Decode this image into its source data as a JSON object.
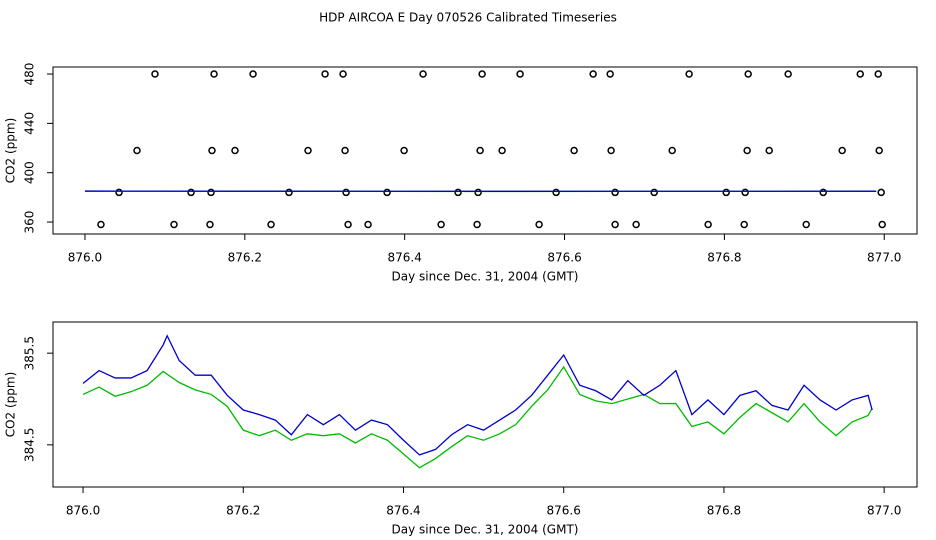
{
  "chart_data": [
    {
      "type": "scatter",
      "title": "HDP AIRCOA E  Day 070526  Calibrated Timeseries",
      "xlabel": "Day since Dec. 31, 2004 (GMT)",
      "ylabel": "CO2 (ppm)",
      "xlim": [
        875.96,
        877.041
      ],
      "ylim": [
        350.3,
        485.7
      ],
      "xticks": [
        {
          "value": 876,
          "label": "876.0"
        },
        876.2,
        876.4,
        876.6,
        876.8,
        {
          "value": 877,
          "label": "877.0"
        }
      ],
      "yticks": [
        360,
        400,
        440,
        480
      ],
      "series": [
        {
          "type": "scatter",
          "color": "#000000",
          "x": [
            876.0876,
            876.1615,
            876.2103,
            876.3004,
            876.3229,
            876.423,
            876.4969,
            876.5444,
            876.6358,
            876.6571,
            876.7559,
            876.8298,
            876.8798,
            876.97,
            876.9925,
            876.0651,
            876.1589,
            876.1877,
            876.2791,
            876.3254,
            876.3993,
            876.4944,
            876.5219,
            876.612,
            876.6583,
            876.7347,
            876.8285,
            876.8561,
            876.9474,
            876.9937,
            876.0426,
            876.1327,
            876.1577,
            876.2553,
            876.3267,
            876.378,
            876.4668,
            876.4919,
            876.5895,
            876.6633,
            876.7122,
            876.8023,
            876.826,
            876.9237,
            876.9962,
            876.02,
            876.1114,
            876.1564,
            876.2328,
            876.3292,
            876.3542,
            876.4456,
            876.4906,
            876.5682,
            876.6633,
            876.6896,
            876.7797,
            876.8248,
            876.9024,
            876.9975
          ],
          "values": [
            480,
            480,
            480,
            480,
            480,
            480,
            480,
            480,
            480,
            480,
            480,
            480,
            480,
            480,
            480,
            418,
            418,
            418,
            418,
            418,
            418,
            418,
            418,
            418,
            418,
            418,
            418,
            418,
            418,
            418,
            384,
            384,
            384,
            384,
            384,
            384,
            384,
            384,
            384,
            384,
            384,
            384,
            384,
            384,
            384,
            358,
            358,
            358,
            358,
            358,
            358,
            358,
            358,
            358,
            358,
            358,
            358,
            358,
            358,
            358
          ]
        },
        {
          "type": "line",
          "color": "#00bb00",
          "x": [
            876.0,
            876.5,
            876.99
          ],
          "values": [
            385.0,
            384.8,
            384.9
          ]
        },
        {
          "type": "line",
          "color": "#0000cc",
          "x": [
            876.0,
            876.5,
            876.99
          ],
          "values": [
            385.1,
            384.9,
            385.0
          ]
        }
      ]
    },
    {
      "type": "line",
      "xlabel": "Day since Dec. 31, 2004 (GMT)",
      "ylabel": "CO2 (ppm)",
      "xlim": [
        875.9625,
        877.041
      ],
      "ylim": [
        384.04,
        385.84
      ],
      "xticks": [
        {
          "value": 876,
          "label": "876.0"
        },
        876.2,
        876.4,
        876.6,
        876.8,
        {
          "value": 877,
          "label": "877.0"
        }
      ],
      "yticks": [
        384.5,
        385.5
      ],
      "series": [
        {
          "type": "line",
          "color": "#00bb00",
          "x": [
            876.0,
            876.02,
            876.04,
            876.06,
            876.08,
            876.1,
            876.12,
            876.14,
            876.16,
            876.18,
            876.2,
            876.22,
            876.24,
            876.26,
            876.28,
            876.3,
            876.32,
            876.34,
            876.36,
            876.38,
            876.4,
            876.42,
            876.44,
            876.46,
            876.48,
            876.5,
            876.52,
            876.54,
            876.56,
            876.58,
            876.6,
            876.62,
            876.64,
            876.66,
            876.68,
            876.7,
            876.72,
            876.74,
            876.76,
            876.78,
            876.8,
            876.82,
            876.84,
            876.86,
            876.88,
            876.9,
            876.92,
            876.94,
            876.96,
            876.98,
            876.985
          ],
          "values": [
            385.05,
            385.13,
            385.03,
            385.08,
            385.15,
            385.3,
            385.18,
            385.1,
            385.05,
            384.92,
            384.66,
            384.6,
            384.66,
            384.55,
            384.62,
            384.6,
            384.62,
            384.52,
            384.62,
            384.55,
            384.4,
            384.25,
            384.35,
            384.48,
            384.6,
            384.55,
            384.62,
            384.72,
            384.92,
            385.1,
            385.35,
            385.05,
            384.98,
            384.95,
            385.0,
            385.05,
            384.95,
            384.95,
            384.7,
            384.75,
            384.62,
            384.8,
            384.95,
            384.85,
            384.75,
            384.95,
            384.75,
            384.6,
            384.75,
            384.82,
            384.9
          ]
        },
        {
          "type": "line",
          "color": "#0000cc",
          "x": [
            876.0,
            876.02,
            876.04,
            876.06,
            876.08,
            876.1,
            876.105,
            876.12,
            876.14,
            876.16,
            876.18,
            876.2,
            876.22,
            876.24,
            876.26,
            876.28,
            876.3,
            876.32,
            876.34,
            876.36,
            876.38,
            876.4,
            876.42,
            876.44,
            876.46,
            876.48,
            876.5,
            876.52,
            876.54,
            876.56,
            876.58,
            876.6,
            876.62,
            876.64,
            876.66,
            876.68,
            876.7,
            876.72,
            876.74,
            876.76,
            876.78,
            876.8,
            876.82,
            876.84,
            876.86,
            876.88,
            876.9,
            876.92,
            876.94,
            876.96,
            876.98,
            876.985
          ],
          "values": [
            385.17,
            385.31,
            385.23,
            385.23,
            385.31,
            385.59,
            385.69,
            385.42,
            385.26,
            385.26,
            385.04,
            384.88,
            384.83,
            384.77,
            384.61,
            384.83,
            384.72,
            384.83,
            384.66,
            384.77,
            384.72,
            384.55,
            384.39,
            384.45,
            384.61,
            384.72,
            384.66,
            384.77,
            384.88,
            385.04,
            385.26,
            385.48,
            385.15,
            385.09,
            384.99,
            385.2,
            385.04,
            385.15,
            385.31,
            384.83,
            384.99,
            384.83,
            385.04,
            385.09,
            384.93,
            384.88,
            385.15,
            384.99,
            384.88,
            384.99,
            385.04,
            384.88
          ]
        }
      ]
    }
  ]
}
